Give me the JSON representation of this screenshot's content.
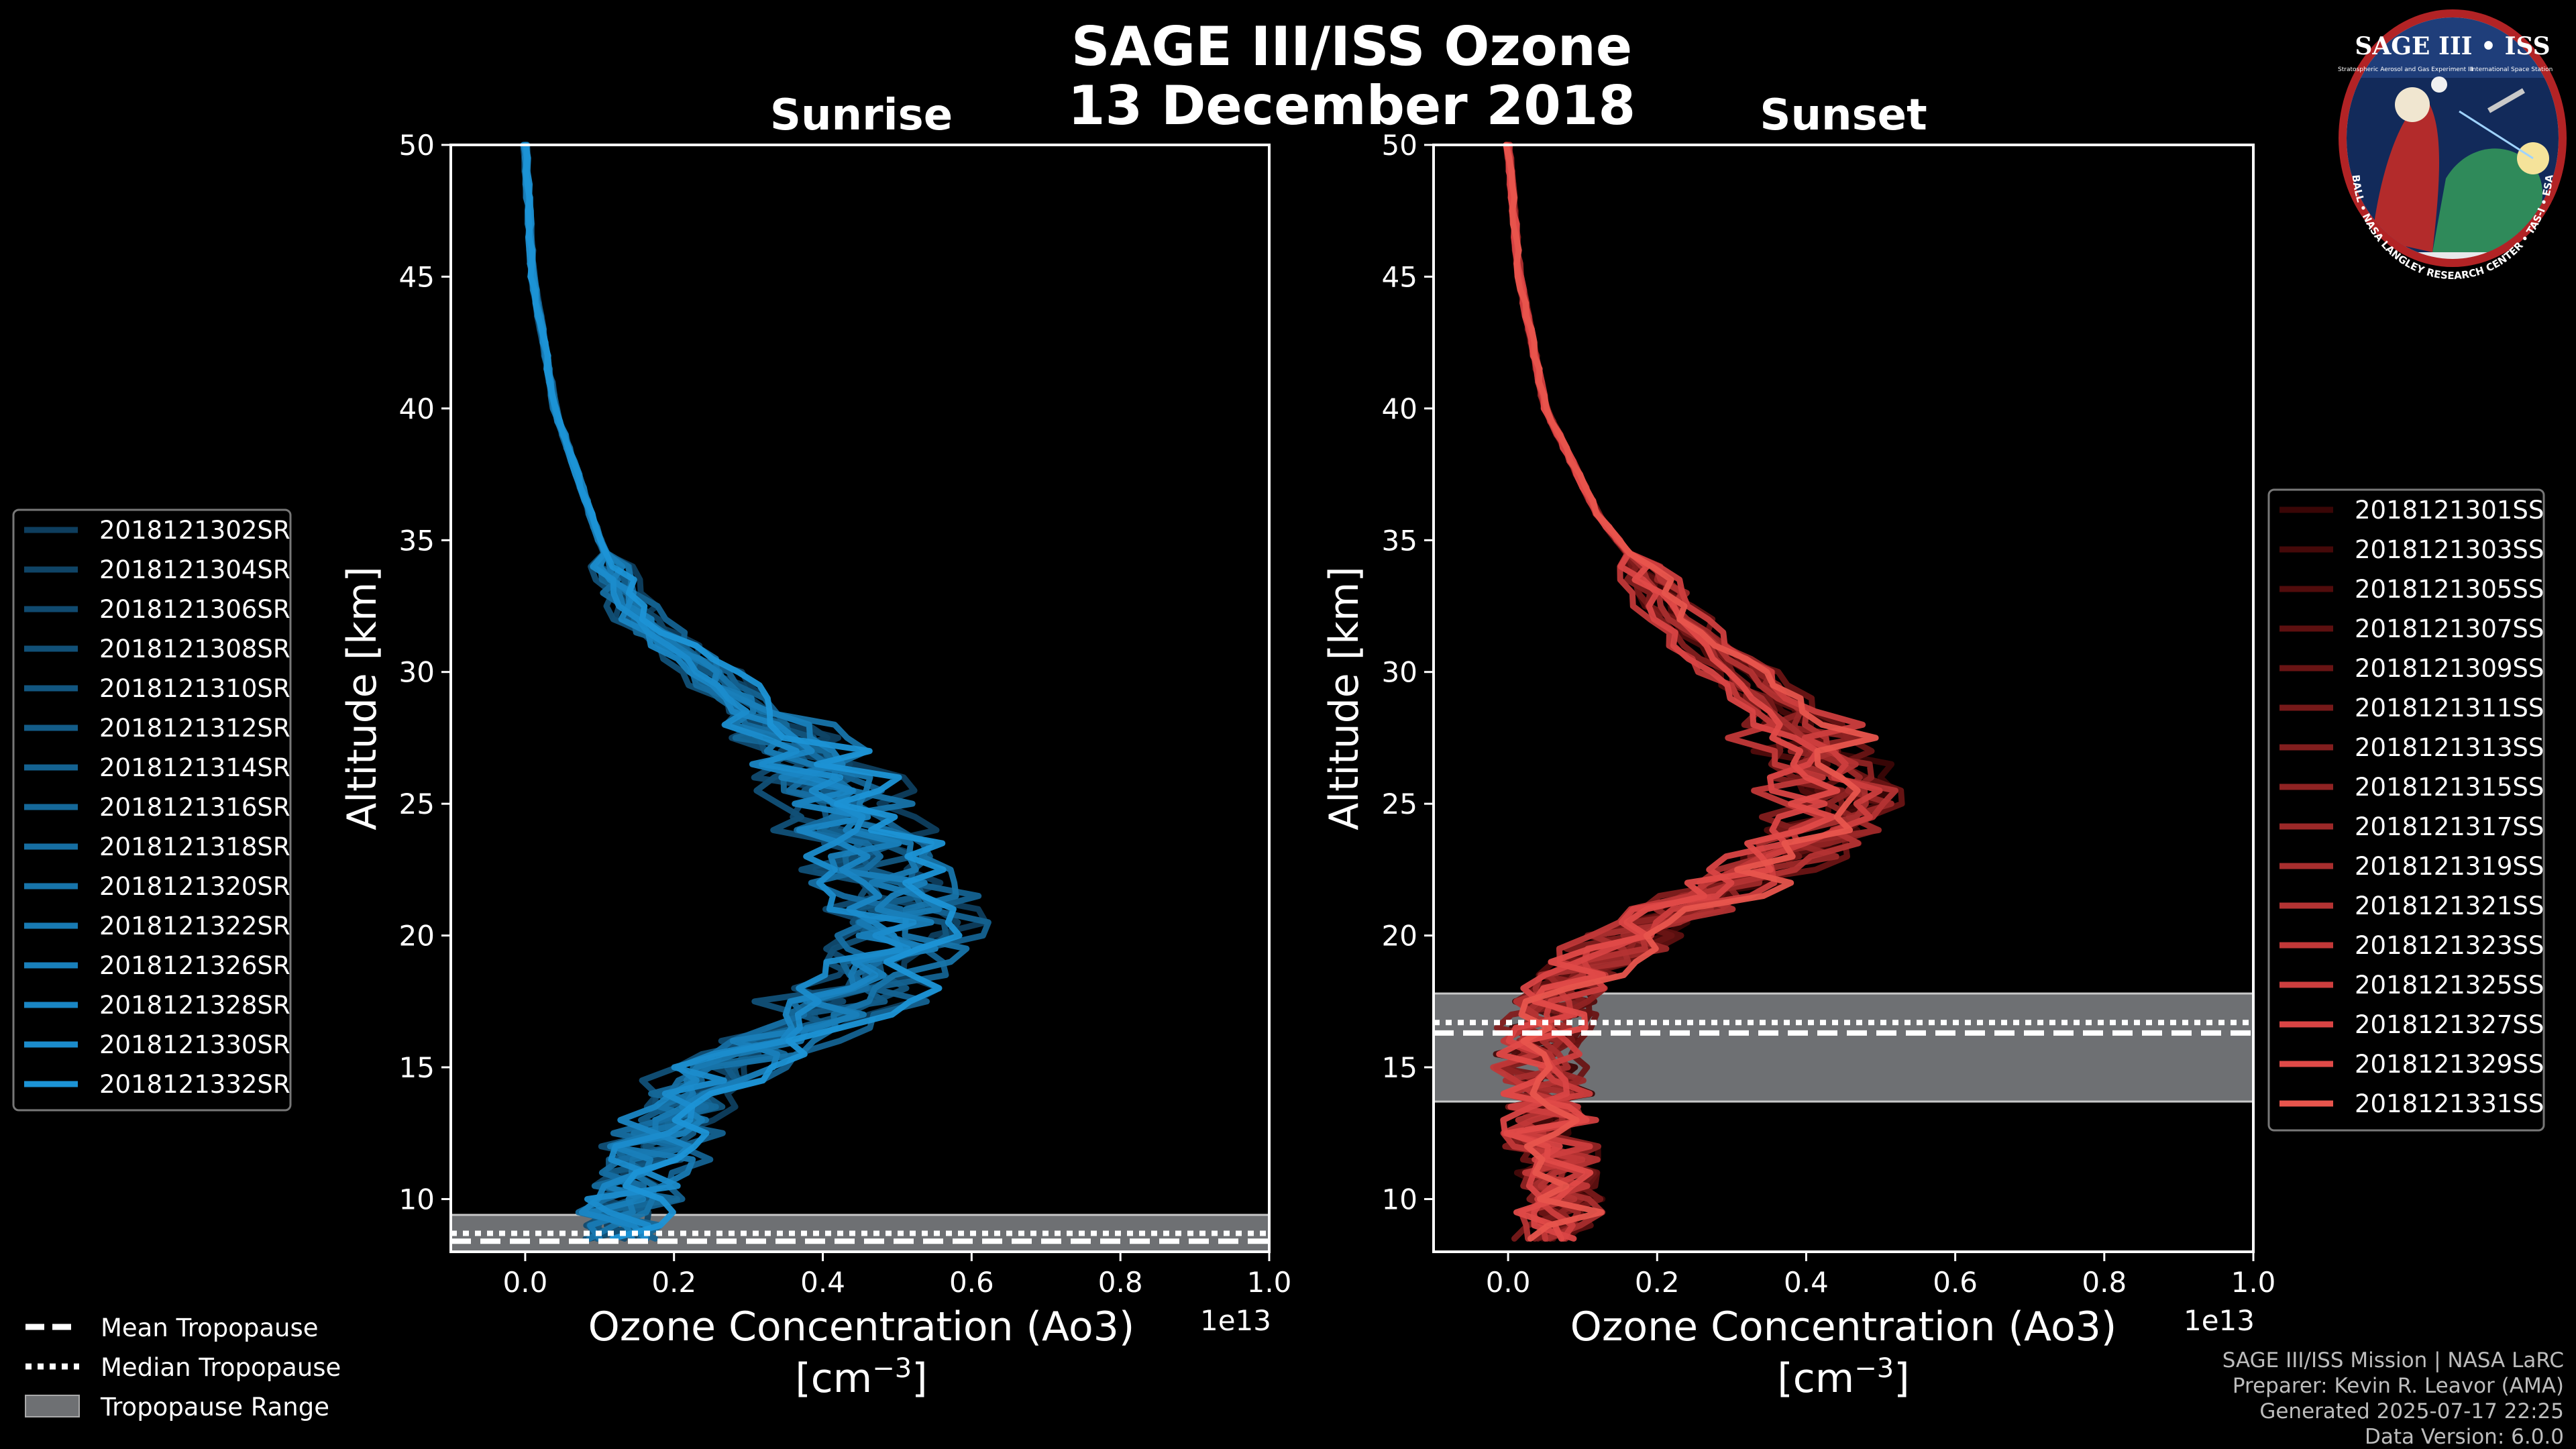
{
  "figure": {
    "title_line1": "SAGE III/ISS Ozone",
    "title_line2": "13 December 2018",
    "credits": [
      "SAGE III/ISS Mission | NASA LaRC",
      "Preparer: Kevin R. Leavor (AMA)",
      "Generated 2025-07-17 22:25",
      "Data Version: 6.0.0"
    ],
    "logo": {
      "title": "SAGE III • ISS",
      "subtitle": "Stratospheric Aerosol and Gas Experiment III",
      "station": "International Space Station",
      "ring_text": "BALL • NASA LANGLEY RESEARCH CENTER • TAS-I • ESA"
    }
  },
  "bottom_legend": {
    "items": [
      {
        "label": "Mean Tropopause",
        "style": "dashed"
      },
      {
        "label": "Median Tropopause",
        "style": "dotted"
      },
      {
        "label": "Tropopause Range",
        "style": "patch"
      }
    ]
  },
  "chart_data": [
    {
      "type": "line",
      "panel": "sunrise",
      "title": "Sunrise",
      "xlabel_line1": "Ozone Concentration (Ao3)",
      "xlabel_line2": "[cm",
      "xlabel_exp": "−3",
      "xlabel_close": "]",
      "x_multiplier": "1e13",
      "ylabel": "Altitude [km]",
      "xlim": [
        -0.1,
        1.0
      ],
      "ylim": [
        8,
        50
      ],
      "xticks": [
        0.0,
        0.2,
        0.4,
        0.6,
        0.8,
        1.0
      ],
      "xtick_labels": [
        "0.0",
        "0.2",
        "0.4",
        "0.6",
        "0.8",
        "1.0"
      ],
      "yticks": [
        10,
        15,
        20,
        25,
        30,
        35,
        40,
        45,
        50
      ],
      "ytick_labels": [
        "10",
        "15",
        "20",
        "25",
        "30",
        "35",
        "40",
        "45",
        "50"
      ],
      "mean_profile": {
        "altitude": [
          50,
          45,
          40,
          35,
          32,
          30,
          28,
          26,
          24,
          22,
          20,
          18,
          16,
          14,
          12,
          10,
          8.5
        ],
        "ozone": [
          0.0,
          0.01,
          0.04,
          0.1,
          0.15,
          0.24,
          0.33,
          0.4,
          0.44,
          0.48,
          0.5,
          0.45,
          0.33,
          0.22,
          0.17,
          0.15,
          0.12
        ]
      },
      "tropopause": {
        "mean": 8.4,
        "median": 8.7,
        "range": [
          8.0,
          9.4
        ]
      },
      "series": [
        {
          "name": "2018121302SR",
          "color": "#0e3e5e"
        },
        {
          "name": "2018121304SR",
          "color": "#0f4466"
        },
        {
          "name": "2018121306SR",
          "color": "#104a6f"
        },
        {
          "name": "2018121308SR",
          "color": "#115077"
        },
        {
          "name": "2018121310SR",
          "color": "#125680"
        },
        {
          "name": "2018121312SR",
          "color": "#135c88"
        },
        {
          "name": "2018121314SR",
          "color": "#146291"
        },
        {
          "name": "2018121316SR",
          "color": "#156899"
        },
        {
          "name": "2018121318SR",
          "color": "#166ea2"
        },
        {
          "name": "2018121320SR",
          "color": "#1774aa"
        },
        {
          "name": "2018121322SR",
          "color": "#187ab3"
        },
        {
          "name": "2018121326SR",
          "color": "#1980bb"
        },
        {
          "name": "2018121328SR",
          "color": "#1a86c4"
        },
        {
          "name": "2018121330SR",
          "color": "#1b8ccc"
        },
        {
          "name": "2018121332SR",
          "color": "#1c94d6"
        }
      ]
    },
    {
      "type": "line",
      "panel": "sunset",
      "title": "Sunset",
      "xlabel_line1": "Ozone Concentration (Ao3)",
      "xlabel_line2": "[cm",
      "xlabel_exp": "−3",
      "xlabel_close": "]",
      "x_multiplier": "1e13",
      "ylabel": "Altitude [km]",
      "xlim": [
        -0.1,
        1.0
      ],
      "ylim": [
        8,
        50
      ],
      "xticks": [
        0.0,
        0.2,
        0.4,
        0.6,
        0.8,
        1.0
      ],
      "xtick_labels": [
        "0.0",
        "0.2",
        "0.4",
        "0.6",
        "0.8",
        "1.0"
      ],
      "yticks": [
        10,
        15,
        20,
        25,
        30,
        35,
        40,
        45,
        50
      ],
      "ytick_labels": [
        "10",
        "15",
        "20",
        "25",
        "30",
        "35",
        "40",
        "45",
        "50"
      ],
      "mean_profile": {
        "altitude": [
          50,
          45,
          40,
          36,
          32,
          30,
          28,
          26,
          25,
          24,
          22,
          20,
          18,
          16,
          14,
          12,
          10,
          8.5
        ],
        "ozone": [
          0.0,
          0.015,
          0.05,
          0.12,
          0.23,
          0.31,
          0.39,
          0.44,
          0.45,
          0.42,
          0.3,
          0.17,
          0.07,
          0.04,
          0.05,
          0.06,
          0.07,
          0.07
        ]
      },
      "tropopause": {
        "mean": 16.3,
        "median": 16.7,
        "range": [
          13.7,
          17.8
        ]
      },
      "series": [
        {
          "name": "2018121301SS",
          "color": "#3a0606"
        },
        {
          "name": "2018121303SS",
          "color": "#450909"
        },
        {
          "name": "2018121305SS",
          "color": "#510c0c"
        },
        {
          "name": "2018121307SS",
          "color": "#5d1010"
        },
        {
          "name": "2018121309SS",
          "color": "#691414"
        },
        {
          "name": "2018121311SS",
          "color": "#761919"
        },
        {
          "name": "2018121313SS",
          "color": "#821e1e"
        },
        {
          "name": "2018121315SS",
          "color": "#8f2323"
        },
        {
          "name": "2018121317SS",
          "color": "#9b2828"
        },
        {
          "name": "2018121319SS",
          "color": "#a82e2e"
        },
        {
          "name": "2018121321SS",
          "color": "#b43333"
        },
        {
          "name": "2018121323SS",
          "color": "#c13838"
        },
        {
          "name": "2018121325SS",
          "color": "#cd3e3e"
        },
        {
          "name": "2018121327SS",
          "color": "#d94444"
        },
        {
          "name": "2018121329SS",
          "color": "#e04a48"
        },
        {
          "name": "2018121331SS",
          "color": "#e8554d"
        }
      ]
    }
  ]
}
